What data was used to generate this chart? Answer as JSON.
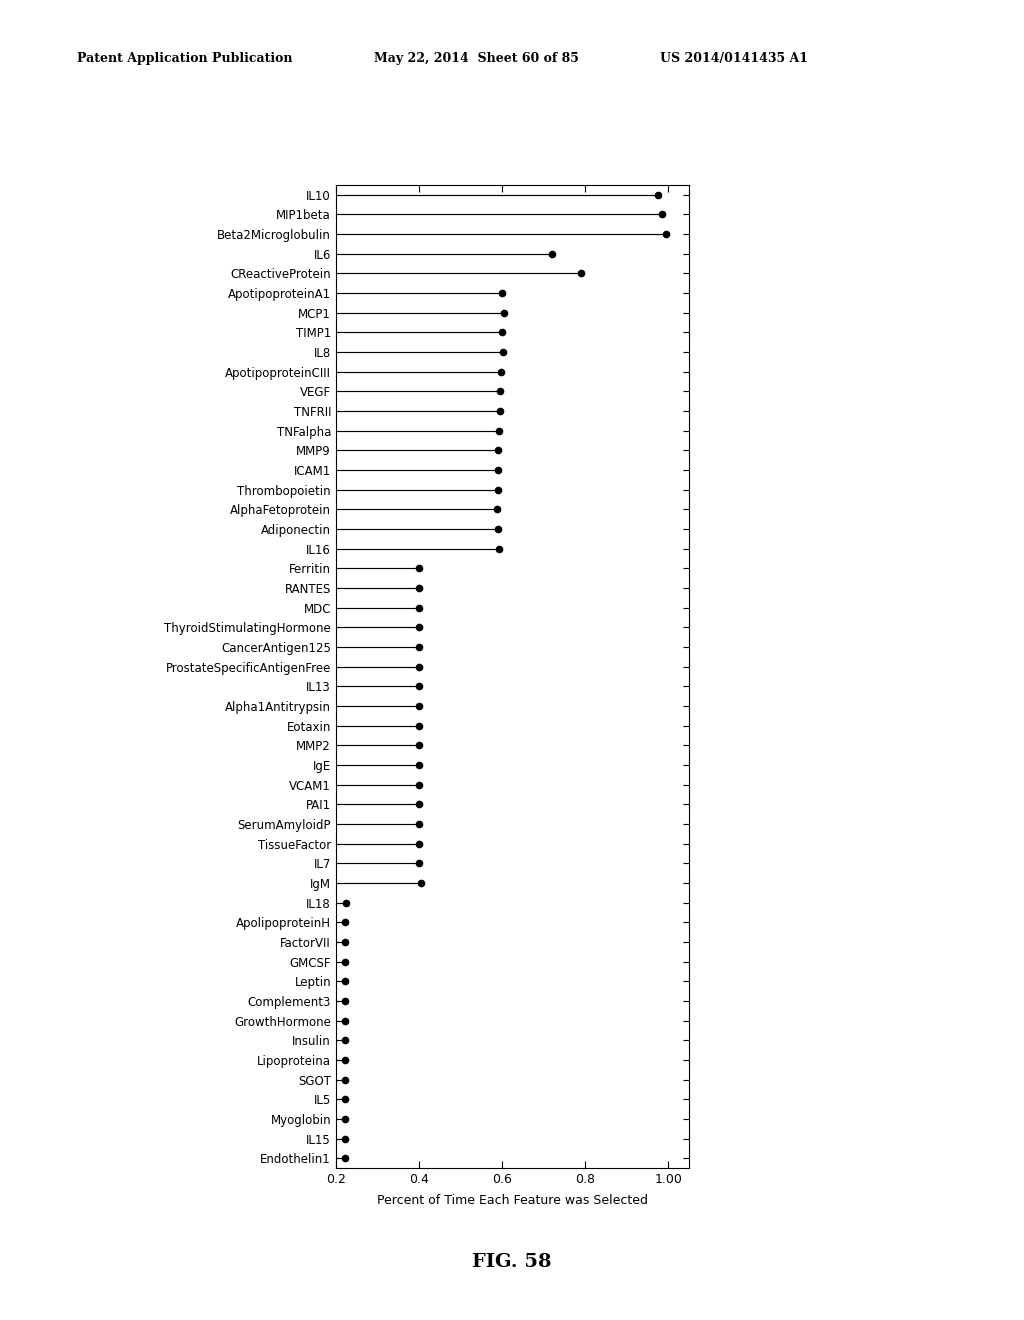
{
  "features": [
    "IL10",
    "MIP1beta",
    "Beta2Microglobulin",
    "IL6",
    "CReactiveProtein",
    "ApotipoproteinA1",
    "MCP1",
    "TIMP1",
    "IL8",
    "ApotipoproteinCIII",
    "VEGF",
    "TNFRII",
    "TNFalpha",
    "MMP9",
    "ICAM1",
    "Thrombopoietin",
    "AlphaFetoprotein",
    "Adiponectin",
    "IL16",
    "Ferritin",
    "RANTES",
    "MDC",
    "ThyroidStimulatingHormone",
    "CancerAntigen125",
    "ProstateSpecificAntigenFree",
    "IL13",
    "Alpha1Antitrypsin",
    "Eotaxin",
    "MMP2",
    "IgE",
    "VCAM1",
    "PAI1",
    "SerumAmyloidP",
    "TissueFactor",
    "IL7",
    "IgM",
    "IL18",
    "ApolipoproteinH",
    "FactorVII",
    "GMCSF",
    "Leptin",
    "Complement3",
    "GrowthHormone",
    "Insulin",
    "Lipoproteina",
    "SGOT",
    "IL5",
    "Myoglobin",
    "IL15",
    "Endothelin1"
  ],
  "values": [
    0.975,
    0.985,
    0.995,
    0.72,
    0.79,
    0.6,
    0.605,
    0.6,
    0.602,
    0.598,
    0.595,
    0.595,
    0.593,
    0.591,
    0.59,
    0.59,
    0.588,
    0.59,
    0.592,
    0.4,
    0.4,
    0.4,
    0.4,
    0.4,
    0.4,
    0.4,
    0.4,
    0.4,
    0.4,
    0.4,
    0.4,
    0.4,
    0.4,
    0.4,
    0.4,
    0.405,
    0.225,
    0.222,
    0.222,
    0.222,
    0.222,
    0.222,
    0.222,
    0.222,
    0.222,
    0.222,
    0.222,
    0.222,
    0.222,
    0.222
  ],
  "xlim_left": 0.2,
  "xlim_right": 1.05,
  "xticks": [
    0.2,
    0.4,
    0.6,
    0.8,
    1.0
  ],
  "xticklabels": [
    "0.2",
    "0.4",
    "0.6",
    "0.8",
    "1.00"
  ],
  "xlabel": "Percent of Time Each Feature was Selected",
  "fig_title": "FIG. 58",
  "header_left": "Patent Application Publication",
  "header_mid": "May 22, 2014  Sheet 60 of 85",
  "header_right": "US 2014/0141435 A1",
  "marker_size": 4.5,
  "line_color": "black",
  "marker_color": "black",
  "bg_color": "white",
  "label_fontsize": 8.5,
  "tick_fontsize": 9.0,
  "xlabel_fontsize": 9.0,
  "header_fontsize": 9.0,
  "figtitle_fontsize": 14
}
